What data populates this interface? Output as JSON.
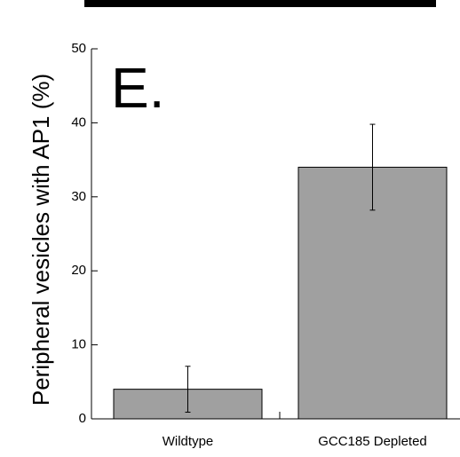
{
  "chart_data": {
    "type": "bar",
    "annotation": "E.",
    "y_label": "Peripheral vesicles with AP1 (%)",
    "categories": [
      "Wildtype",
      "GCC185 Depleted"
    ],
    "values": [
      4,
      34
    ],
    "errors": [
      3.1,
      5.8
    ],
    "color": "#a0a0a0",
    "ylim": [
      0,
      50
    ],
    "yticks": [
      0,
      10,
      20,
      30,
      40,
      50
    ],
    "grid": false
  }
}
